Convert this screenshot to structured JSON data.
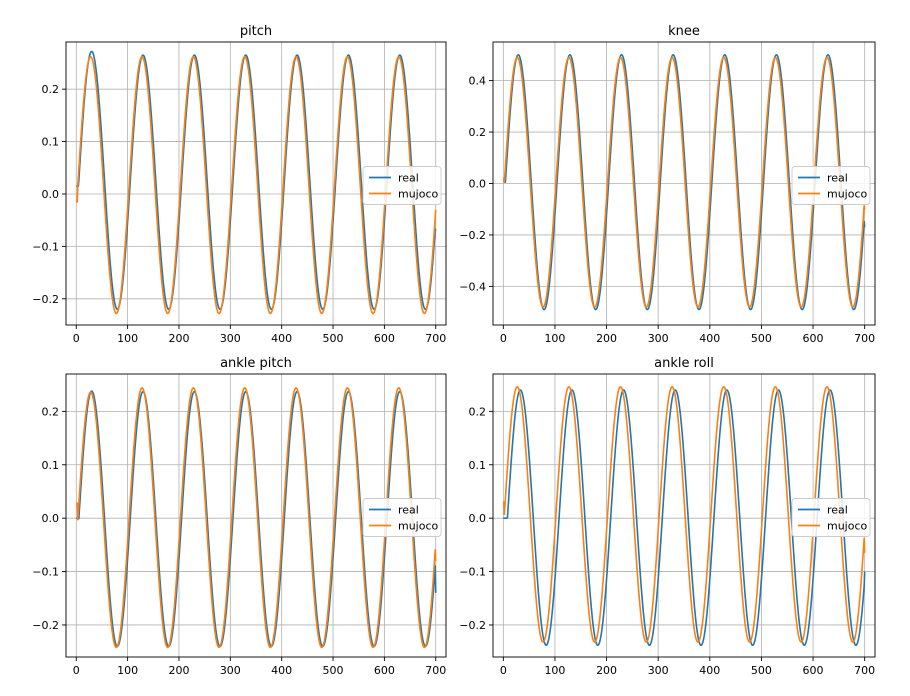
{
  "colors": {
    "real": "#1f77b4",
    "mujoco": "#ff7f0e",
    "grid": "#b0b0b0",
    "axes": "#000000"
  },
  "chart_data": [
    {
      "type": "line",
      "title": "pitch",
      "xlabel": "",
      "ylabel": "",
      "xlim": [
        -20,
        720
      ],
      "ylim": [
        -0.25,
        0.29
      ],
      "xticks": [
        0,
        100,
        200,
        300,
        400,
        500,
        600,
        700
      ],
      "xtick_labels": [
        "0",
        "100",
        "200",
        "300",
        "400",
        "500",
        "600",
        "700"
      ],
      "yticks": [
        -0.2,
        -0.1,
        0.0,
        0.1,
        0.2
      ],
      "ytick_labels": [
        "−0.2",
        "−0.1",
        "0.0",
        "0.1",
        "0.2"
      ],
      "grid": true,
      "legend": {
        "location": "center-right",
        "entries": [
          "real",
          "mujoco"
        ]
      },
      "series": [
        {
          "name": "real",
          "x_start": 0,
          "x_end": 700,
          "period": 100,
          "phase": 5,
          "first_peak": 0.272,
          "peak": 0.265,
          "trough": -0.22,
          "start_value": 0.015,
          "end_value": -0.07
        },
        {
          "name": "mujoco",
          "x_start": 0,
          "x_end": 700,
          "period": 100,
          "phase": 3,
          "first_peak": 0.262,
          "peak": 0.262,
          "trough": -0.228,
          "start_value": -0.015,
          "end_value": -0.03
        }
      ]
    },
    {
      "type": "line",
      "title": "knee",
      "xlabel": "",
      "ylabel": "",
      "xlim": [
        -20,
        720
      ],
      "ylim": [
        -0.55,
        0.55
      ],
      "xticks": [
        0,
        100,
        200,
        300,
        400,
        500,
        600,
        700
      ],
      "xtick_labels": [
        "0",
        "100",
        "200",
        "300",
        "400",
        "500",
        "600",
        "700"
      ],
      "yticks": [
        -0.4,
        -0.2,
        0.0,
        0.2,
        0.4
      ],
      "ytick_labels": [
        "−0.4",
        "−0.2",
        "0.0",
        "0.2",
        "0.4"
      ],
      "grid": true,
      "legend": {
        "location": "center-right",
        "entries": [
          "real",
          "mujoco"
        ]
      },
      "series": [
        {
          "name": "real",
          "x_start": 0,
          "x_end": 700,
          "period": 100,
          "phase": 4,
          "first_peak": 0.5,
          "peak": 0.5,
          "trough": -0.49,
          "start_value": 0.01,
          "end_value": -0.17
        },
        {
          "name": "mujoco",
          "x_start": 0,
          "x_end": 700,
          "period": 100,
          "phase": 2,
          "first_peak": 0.49,
          "peak": 0.49,
          "trough": -0.48,
          "start_value": 0.02,
          "end_value": -0.1
        }
      ]
    },
    {
      "type": "line",
      "title": "ankle pitch",
      "xlabel": "",
      "ylabel": "",
      "xlim": [
        -20,
        720
      ],
      "ylim": [
        -0.26,
        0.27
      ],
      "xticks": [
        0,
        100,
        200,
        300,
        400,
        500,
        600,
        700
      ],
      "xtick_labels": [
        "0",
        "100",
        "200",
        "300",
        "400",
        "500",
        "600",
        "700"
      ],
      "yticks": [
        -0.2,
        -0.1,
        0.0,
        0.1,
        0.2
      ],
      "ytick_labels": [
        "−0.2",
        "−0.1",
        "0.0",
        "0.1",
        "0.2"
      ],
      "grid": true,
      "legend": {
        "location": "center-right",
        "entries": [
          "real",
          "mujoco"
        ]
      },
      "series": [
        {
          "name": "real",
          "x_start": 0,
          "x_end": 700,
          "period": 100,
          "phase": 5,
          "first_peak": 0.238,
          "peak": 0.237,
          "trough": -0.24,
          "start_value": 0.0,
          "end_value": -0.14
        },
        {
          "name": "mujoco",
          "x_start": 0,
          "x_end": 700,
          "period": 100,
          "phase": 3,
          "first_peak": 0.236,
          "peak": 0.244,
          "trough": -0.242,
          "start_value": 0.028,
          "end_value": -0.08
        }
      ]
    },
    {
      "type": "line",
      "title": "ankle roll",
      "xlabel": "",
      "ylabel": "",
      "xlim": [
        -20,
        720
      ],
      "ylim": [
        -0.26,
        0.27
      ],
      "xticks": [
        0,
        100,
        200,
        300,
        400,
        500,
        600,
        700
      ],
      "xtick_labels": [
        "0",
        "100",
        "200",
        "300",
        "400",
        "500",
        "600",
        "700"
      ],
      "yticks": [
        -0.2,
        -0.1,
        0.0,
        0.1,
        0.2
      ],
      "ytick_labels": [
        "−0.2",
        "−0.1",
        "0.0",
        "0.1",
        "0.2"
      ],
      "grid": true,
      "legend": {
        "location": "center-right",
        "entries": [
          "real",
          "mujoco"
        ]
      },
      "series": [
        {
          "name": "real",
          "x_start": 0,
          "x_end": 700,
          "period": 100,
          "phase": 8,
          "first_peak": 0.24,
          "peak": 0.24,
          "trough": -0.238,
          "start_value": 0.0,
          "end_value": -0.1
        },
        {
          "name": "mujoco",
          "x_start": 0,
          "x_end": 700,
          "period": 100,
          "phase": 2,
          "first_peak": 0.246,
          "peak": 0.246,
          "trough": -0.232,
          "start_value": 0.03,
          "end_value": -0.065
        }
      ]
    }
  ]
}
